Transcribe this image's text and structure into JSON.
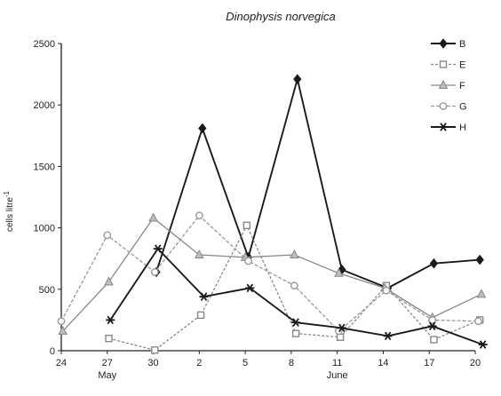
{
  "chart_data": {
    "type": "line",
    "title": "Dinophysis norvegica",
    "ylabel": "cells litre",
    "ylabel_sup": "-1",
    "xlabel": "",
    "ylim": [
      0,
      2500
    ],
    "yticks": [
      0,
      500,
      1000,
      1500,
      2000,
      2500
    ],
    "xlim": [
      24,
      51
    ],
    "xticks": [
      {
        "x": 24,
        "label": "24"
      },
      {
        "x": 27,
        "label": "27"
      },
      {
        "x": 30,
        "label": "30"
      },
      {
        "x": 33,
        "label": "2"
      },
      {
        "x": 36,
        "label": "5"
      },
      {
        "x": 39,
        "label": "8"
      },
      {
        "x": 42,
        "label": "11"
      },
      {
        "x": 45,
        "label": "14"
      },
      {
        "x": 48,
        "label": "17"
      },
      {
        "x": 51,
        "label": "20"
      }
    ],
    "month_labels": [
      {
        "x": 27,
        "label": "May"
      },
      {
        "x": 42,
        "label": "June"
      }
    ],
    "grid": false,
    "legend_position": "top-right",
    "series": [
      {
        "name": "B",
        "color": "#1a1a1a",
        "marker": "diamond",
        "dash": "",
        "points": [
          [
            30.2,
            640
          ],
          [
            33.2,
            1810
          ],
          [
            36.2,
            760
          ],
          [
            39.4,
            2210
          ],
          [
            42.3,
            660
          ],
          [
            45.3,
            510
          ],
          [
            48.3,
            710
          ],
          [
            51.3,
            740
          ]
        ]
      },
      {
        "name": "E",
        "color": "#888888",
        "marker": "square",
        "dash": "3,2",
        "points": [
          [
            27.1,
            100
          ],
          [
            30.1,
            5
          ],
          [
            33.1,
            290
          ],
          [
            36.1,
            1020
          ],
          [
            39.3,
            140
          ],
          [
            42.2,
            110
          ],
          [
            45.2,
            530
          ],
          [
            48.3,
            90
          ],
          [
            51.3,
            250
          ]
        ]
      },
      {
        "name": "F",
        "color": "#888888",
        "marker": "triangle",
        "dash": "",
        "points": [
          [
            24.1,
            160
          ],
          [
            27.1,
            560
          ],
          [
            30.0,
            1080
          ],
          [
            33.0,
            780
          ],
          [
            36.0,
            760
          ],
          [
            39.2,
            780
          ],
          [
            42.1,
            630
          ],
          [
            45.1,
            510
          ],
          [
            48.2,
            270
          ],
          [
            51.4,
            460
          ]
        ]
      },
      {
        "name": "G",
        "color": "#999999",
        "marker": "circle",
        "dash": "4,2",
        "points": [
          [
            24.0,
            240
          ],
          [
            27.0,
            940
          ],
          [
            30.1,
            640
          ],
          [
            33.0,
            1100
          ],
          [
            36.2,
            730
          ],
          [
            39.2,
            530
          ],
          [
            42.1,
            160
          ],
          [
            45.2,
            490
          ],
          [
            48.2,
            250
          ],
          [
            51.2,
            240
          ]
        ]
      },
      {
        "name": "H",
        "color": "#1a1a1a",
        "marker": "asterisk",
        "dash": "",
        "points": [
          [
            27.2,
            250
          ],
          [
            30.3,
            830
          ],
          [
            33.3,
            440
          ],
          [
            36.3,
            510
          ],
          [
            39.3,
            230
          ],
          [
            42.3,
            185
          ],
          [
            45.3,
            120
          ],
          [
            48.2,
            200
          ],
          [
            51.5,
            50
          ]
        ]
      }
    ]
  }
}
